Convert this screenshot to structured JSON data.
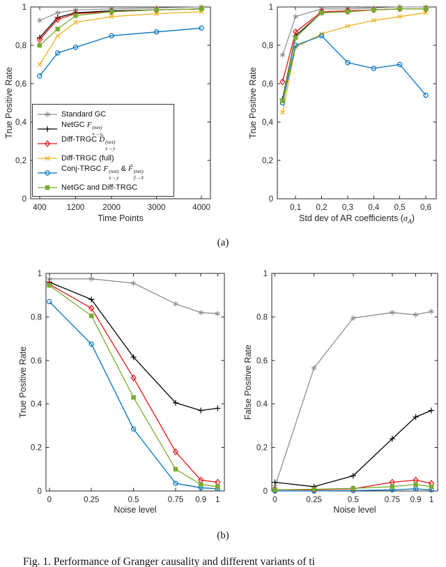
{
  "figure": {
    "panel_a_label": "(a)",
    "panel_b_label": "(b)",
    "caption": "Fig. 1.   Performance of Granger causality and different variants of ti"
  },
  "series_styles": {
    "standard_gc": {
      "color": "#8f8f8f",
      "marker": "asterisk"
    },
    "netgc": {
      "color": "#000000",
      "marker": "plus"
    },
    "diff_trgc": {
      "color": "#e01414",
      "marker": "diamond"
    },
    "diff_trgc_full": {
      "color": "#edb120",
      "marker": "x"
    },
    "conj_trgc": {
      "color": "#0072bd",
      "marker": "circle"
    },
    "netgc_and_diff": {
      "color": "#77ac30",
      "marker": "square"
    }
  },
  "legend": {
    "entries": [
      {
        "key": "standard_gc",
        "label": "Standard GC",
        "parts": [
          {
            "t": "Standard GC"
          }
        ]
      },
      {
        "key": "netgc",
        "label": "NetGC F^(net)_(x→y)",
        "parts": [
          {
            "t": "NetGC "
          },
          {
            "base": "F",
            "sup": "(net)",
            "sub": "x→y"
          }
        ]
      },
      {
        "key": "diff_trgc",
        "label": "Diff-TRGC D̃^(net)_(x→y)",
        "parts": [
          {
            "t": "Diff-TRGC "
          },
          {
            "base": "D̃",
            "sup": "(net)",
            "sub": "x→y"
          }
        ]
      },
      {
        "key": "diff_trgc_full",
        "label": "Diff-TRGC (full)",
        "parts": [
          {
            "t": "Diff-TRGC (full)"
          }
        ]
      },
      {
        "key": "conj_trgc",
        "label": "Conj-TRGC F^(net)_(x→y) & F̃^(net)_(ỹ→x̃)",
        "parts": [
          {
            "t": "Conj-TRGC "
          },
          {
            "base": "F",
            "sup": "(net)",
            "sub": "x→y"
          },
          {
            "t": " & "
          },
          {
            "base": "F̃",
            "sup": "(net)",
            "sub": "ỹ→x̃"
          }
        ]
      },
      {
        "key": "netgc_and_diff",
        "label": "NetGC and Diff-TRGC",
        "parts": [
          {
            "t": "NetGC and Diff-TRGC"
          }
        ]
      }
    ]
  },
  "chart_data": [
    {
      "id": "tpr_vs_time_points",
      "type": "line",
      "xlabel": "Time Points",
      "xlabel_parts": [
        {
          "t": "Time Points"
        }
      ],
      "ylabel": "True Positive Rate",
      "xlim": [
        200,
        4200
      ],
      "ylim": [
        0,
        1
      ],
      "xticks": [
        {
          "v": 400,
          "l": "400"
        },
        {
          "v": 1200,
          "l": "1200"
        },
        {
          "v": 2000,
          "l": "2000"
        },
        {
          "v": 3000,
          "l": "3000"
        },
        {
          "v": 4000,
          "l": "4000"
        }
      ],
      "yticks": [
        {
          "v": 0,
          "l": "0"
        },
        {
          "v": 0.2,
          "l": "0,2"
        },
        {
          "v": 0.4,
          "l": "0,4"
        },
        {
          "v": 0.6,
          "l": "0,6"
        },
        {
          "v": 0.8,
          "l": "0,8"
        },
        {
          "v": 1,
          "l": "1"
        }
      ],
      "x": [
        400,
        800,
        1200,
        2000,
        3000,
        4000
      ],
      "series": [
        {
          "key": "standard_gc",
          "values": [
            0.93,
            0.97,
            0.985,
            0.99,
            0.995,
            1.0
          ]
        },
        {
          "key": "netgc",
          "values": [
            0.84,
            0.945,
            0.97,
            0.98,
            0.985,
            0.99
          ]
        },
        {
          "key": "diff_trgc",
          "values": [
            0.83,
            0.935,
            0.965,
            0.975,
            0.985,
            0.99
          ]
        },
        {
          "key": "diff_trgc_full",
          "values": [
            0.7,
            0.85,
            0.92,
            0.95,
            0.965,
            0.975
          ]
        },
        {
          "key": "conj_trgc",
          "values": [
            0.64,
            0.76,
            0.79,
            0.85,
            0.87,
            0.89
          ]
        },
        {
          "key": "netgc_and_diff",
          "values": [
            0.8,
            0.885,
            0.955,
            0.975,
            0.985,
            0.99
          ]
        }
      ],
      "show_legend": true,
      "grid": false,
      "legend_position": "middle-left"
    },
    {
      "id": "tpr_vs_ar_stddev",
      "type": "line",
      "xlabel": "Std dev of AR coefficients (σ_A)",
      "xlabel_parts": [
        {
          "t": "Std dev of AR coefficients ("
        },
        {
          "base": "σ",
          "sub": "A"
        },
        {
          "t": ")"
        }
      ],
      "ylabel": "True Positive Rate",
      "xlim": [
        0.03,
        0.64
      ],
      "ylim": [
        0,
        1
      ],
      "xticks": [
        {
          "v": 0.1,
          "l": "0,1"
        },
        {
          "v": 0.2,
          "l": "0,2"
        },
        {
          "v": 0.3,
          "l": "0,3"
        },
        {
          "v": 0.4,
          "l": "0,4"
        },
        {
          "v": 0.5,
          "l": "0,5"
        },
        {
          "v": 0.6,
          "l": "0,6"
        }
      ],
      "yticks": [
        {
          "v": 0,
          "l": "0"
        },
        {
          "v": 0.2,
          "l": "0,2"
        },
        {
          "v": 0.4,
          "l": "0,4"
        },
        {
          "v": 0.6,
          "l": "0,6"
        },
        {
          "v": 0.8,
          "l": "0,8"
        },
        {
          "v": 1,
          "l": "1"
        }
      ],
      "x": [
        0.05,
        0.1,
        0.2,
        0.3,
        0.4,
        0.5,
        0.6
      ],
      "series": [
        {
          "key": "standard_gc",
          "values": [
            0.75,
            0.95,
            0.99,
            0.99,
            0.995,
            1.0,
            1.0
          ]
        },
        {
          "key": "netgc",
          "values": [
            0.52,
            0.85,
            0.97,
            0.975,
            0.985,
            0.99,
            0.99
          ]
        },
        {
          "key": "diff_trgc",
          "values": [
            0.61,
            0.87,
            0.975,
            0.98,
            0.985,
            0.99,
            0.99
          ]
        },
        {
          "key": "diff_trgc_full",
          "values": [
            0.45,
            0.79,
            0.86,
            0.9,
            0.93,
            0.95,
            0.97
          ]
        },
        {
          "key": "conj_trgc",
          "values": [
            0.5,
            0.8,
            0.85,
            0.71,
            0.68,
            0.7,
            0.54
          ]
        },
        {
          "key": "netgc_and_diff",
          "values": [
            0.51,
            0.84,
            0.97,
            0.975,
            0.985,
            0.99,
            0.99
          ]
        }
      ],
      "show_legend": false,
      "grid": false
    },
    {
      "id": "tpr_vs_noise_level",
      "type": "line",
      "xlabel": "Noise level",
      "xlabel_parts": [
        {
          "t": "Noise level"
        }
      ],
      "ylabel": "True Positive Rate",
      "xlim": [
        -0.02,
        1.04
      ],
      "ylim": [
        0,
        1
      ],
      "xticks": [
        {
          "v": 0,
          "l": "0"
        },
        {
          "v": 0.25,
          "l": "0.25"
        },
        {
          "v": 0.5,
          "l": "0.5"
        },
        {
          "v": 0.75,
          "l": "0.75"
        },
        {
          "v": 0.9,
          "l": "0.9"
        },
        {
          "v": 1,
          "l": "1"
        }
      ],
      "yticks": [
        {
          "v": 0,
          "l": "0"
        },
        {
          "v": 0.2,
          "l": "0.2"
        },
        {
          "v": 0.4,
          "l": "0.4"
        },
        {
          "v": 0.6,
          "l": "0.6"
        },
        {
          "v": 0.8,
          "l": "0.8"
        },
        {
          "v": 1,
          "l": "1"
        }
      ],
      "x": [
        0,
        0.25,
        0.5,
        0.75,
        0.9,
        1
      ],
      "series": [
        {
          "key": "standard_gc",
          "values": [
            0.975,
            0.975,
            0.955,
            0.86,
            0.82,
            0.815
          ]
        },
        {
          "key": "netgc",
          "values": [
            0.96,
            0.88,
            0.615,
            0.405,
            0.37,
            0.38
          ]
        },
        {
          "key": "diff_trgc",
          "values": [
            0.95,
            0.84,
            0.52,
            0.18,
            0.05,
            0.04
          ]
        },
        {
          "key": "conj_trgc",
          "values": [
            0.87,
            0.675,
            0.285,
            0.035,
            0.015,
            0.01
          ]
        },
        {
          "key": "netgc_and_diff",
          "values": [
            0.945,
            0.805,
            0.43,
            0.1,
            0.03,
            0.02
          ]
        }
      ],
      "show_legend": false,
      "grid": false
    },
    {
      "id": "fpr_vs_noise_level",
      "type": "line",
      "xlabel": "Noise level",
      "xlabel_parts": [
        {
          "t": "Noise level"
        }
      ],
      "ylabel": "False Positive Rate",
      "xlim": [
        -0.02,
        1.04
      ],
      "ylim": [
        0,
        1
      ],
      "xticks": [
        {
          "v": 0,
          "l": "0"
        },
        {
          "v": 0.25,
          "l": "0.25"
        },
        {
          "v": 0.5,
          "l": "0.5"
        },
        {
          "v": 0.75,
          "l": "0.75"
        },
        {
          "v": 0.9,
          "l": "0.9"
        },
        {
          "v": 1,
          "l": "1"
        }
      ],
      "yticks": [
        {
          "v": 0,
          "l": "0"
        },
        {
          "v": 0.2,
          "l": "0.2"
        },
        {
          "v": 0.4,
          "l": "0.4"
        },
        {
          "v": 0.6,
          "l": "0.6"
        },
        {
          "v": 0.8,
          "l": "0.8"
        },
        {
          "v": 1,
          "l": "1"
        }
      ],
      "x": [
        0,
        0.25,
        0.5,
        0.75,
        0.9,
        1
      ],
      "series": [
        {
          "key": "standard_gc",
          "values": [
            0.02,
            0.565,
            0.795,
            0.82,
            0.81,
            0.825
          ]
        },
        {
          "key": "netgc",
          "values": [
            0.04,
            0.02,
            0.07,
            0.24,
            0.34,
            0.37
          ]
        },
        {
          "key": "diff_trgc",
          "values": [
            0.005,
            0.005,
            0.01,
            0.04,
            0.05,
            0.035
          ]
        },
        {
          "key": "conj_trgc",
          "values": [
            0.0,
            0.0,
            0.002,
            0.005,
            0.01,
            0.005
          ]
        },
        {
          "key": "netgc_and_diff",
          "values": [
            0.005,
            0.008,
            0.012,
            0.02,
            0.03,
            0.02
          ]
        }
      ],
      "show_legend": false,
      "grid": false
    }
  ]
}
